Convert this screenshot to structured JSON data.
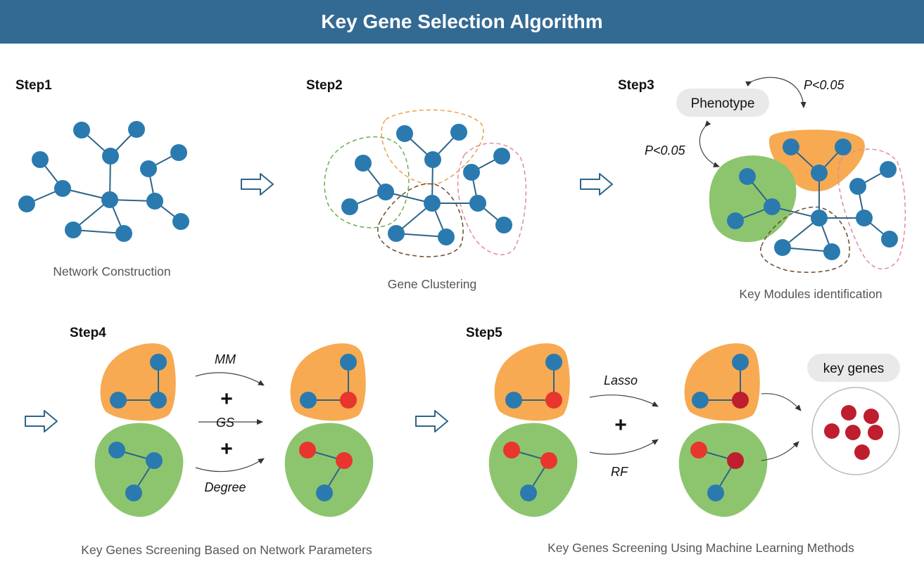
{
  "title": "Key Gene Selection Algorithm",
  "steps": {
    "step1": {
      "label": "Step1",
      "caption": "Network Construction"
    },
    "step2": {
      "label": "Step2",
      "caption": "Gene Clustering"
    },
    "step3": {
      "label": "Step3",
      "caption": "Key Modules identification",
      "phenotype": "Phenotype",
      "pvalue_top": "P<0.05",
      "pvalue_left": "P<0.05"
    },
    "step4": {
      "label": "Step4",
      "caption": "Key Genes Screening Based on Network Parameters",
      "params": [
        "MM",
        "GS",
        "Degree"
      ],
      "plus": "+"
    },
    "step5": {
      "label": "Step5",
      "caption": "Key Genes Screening Using Machine Learning Methods",
      "methods": [
        "Lasso",
        "RF"
      ],
      "plus": "+",
      "result": "key genes"
    }
  },
  "colors": {
    "header_bg": "#336a93",
    "node_blue": "#2a7aaf",
    "node_red": "#e8352e",
    "node_dark_red": "#be1e2d",
    "module_orange": "#f7aa52",
    "module_green": "#8dc56e",
    "cluster_green_dash": "#6ab04c",
    "cluster_orange_dash": "#e8a345",
    "cluster_pink_dash": "#e08aa0",
    "cluster_brown_dash": "#6b4a2a"
  }
}
